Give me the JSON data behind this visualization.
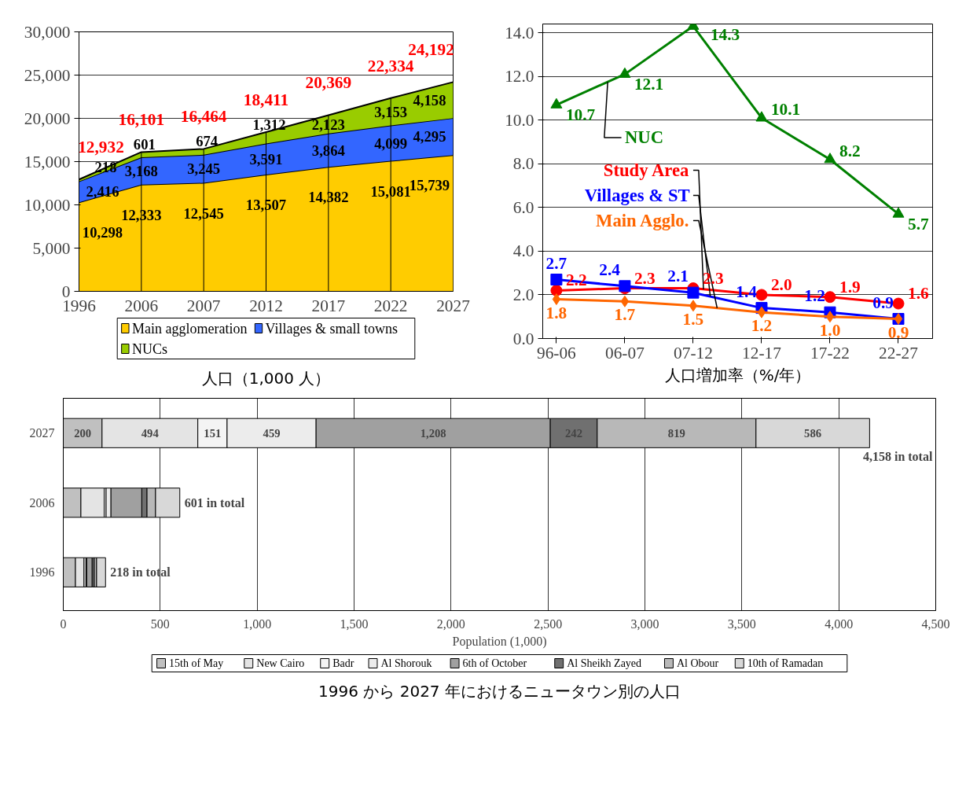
{
  "chart_data": [
    {
      "type": "area",
      "stacked": true,
      "title": "人口（1,000 人）",
      "categories": [
        "1996",
        "2006",
        "2007",
        "2012",
        "2017",
        "2022",
        "2027"
      ],
      "series": [
        {
          "name": "Main agglomeration",
          "color": "#ffcc00",
          "values": [
            10298,
            12333,
            12545,
            13507,
            14382,
            15081,
            15739
          ],
          "value_labels": [
            "10,298",
            "12,333",
            "12,545",
            "13,507",
            "14,382",
            "15,081",
            "15,739"
          ]
        },
        {
          "name": "Villages & small towns",
          "color": "#3366ff",
          "values": [
            2416,
            3168,
            3245,
            3591,
            3864,
            4099,
            4295
          ],
          "value_labels": [
            "2,416",
            "3,168",
            "3,245",
            "3,591",
            "3,864",
            "4,099",
            "4,295"
          ]
        },
        {
          "name": "NUCs",
          "color": "#99cc00",
          "values": [
            218,
            601,
            674,
            1312,
            2123,
            3153,
            4158
          ],
          "value_labels": [
            "218",
            "601",
            "674",
            "1,312",
            "2,123",
            "3,153",
            "4,158"
          ]
        }
      ],
      "totals": [
        "12,932",
        "16,101",
        "16,464",
        "18,411",
        "20,369",
        "22,334",
        "24,192"
      ],
      "ylim": [
        0,
        30000
      ],
      "yticks": [
        0,
        {
          "value": 5000,
          "label": "5,000"
        },
        {
          "value": 10000,
          "label": "10,000"
        },
        {
          "value": 15000,
          "label": "15,000"
        },
        {
          "value": 20000,
          "label": "20,000"
        },
        {
          "value": 25000,
          "label": "25,000"
        },
        {
          "value": 30000,
          "label": "30,000"
        }
      ],
      "grid": "y",
      "legend": "bottom"
    },
    {
      "type": "line",
      "title": "人口増加率（%/年）",
      "categories": [
        "96-06",
        "06-07",
        "07-12",
        "12-17",
        "17-22",
        "22-27"
      ],
      "series": [
        {
          "name": "NUC",
          "color": "#008000",
          "marker": "triangle",
          "values": [
            10.7,
            12.1,
            14.3,
            10.1,
            8.2,
            5.7
          ],
          "value_labels": [
            "10.7",
            "12.1",
            "14.3",
            "10.1",
            "8.2",
            "5.7"
          ]
        },
        {
          "name": "Study Area",
          "color": "#ff0000",
          "marker": "circle",
          "values": [
            2.2,
            2.3,
            2.3,
            2.0,
            1.9,
            1.6
          ],
          "value_labels": [
            "2.2",
            "2.3",
            "2.3",
            "2.0",
            "1.9",
            "1.6"
          ]
        },
        {
          "name": "Villages & ST",
          "color": "#0000ff",
          "marker": "square",
          "values": [
            2.7,
            2.4,
            2.1,
            1.4,
            1.2,
            0.9
          ],
          "value_labels": [
            "2.7",
            "2.4",
            "2.1",
            "1.4",
            "1.2",
            "0.9"
          ]
        },
        {
          "name": "Main Agglo.",
          "color": "#ff6600",
          "marker": "diamond",
          "values": [
            1.8,
            1.7,
            1.5,
            1.2,
            1.0,
            0.9
          ],
          "value_labels": [
            "1.8",
            "1.7",
            "1.5",
            "1.2",
            "1.0",
            "0.9"
          ]
        }
      ],
      "ylim": [
        0,
        14.4
      ],
      "yticks": [
        {
          "value": 0,
          "label": "0.0"
        },
        {
          "value": 2,
          "label": "2.0"
        },
        {
          "value": 4,
          "label": "4.0"
        },
        {
          "value": 6,
          "label": "6.0"
        },
        {
          "value": 8,
          "label": "8.0"
        },
        {
          "value": 10,
          "label": "10.0"
        },
        {
          "value": 12,
          "label": "12.0"
        },
        {
          "value": 14,
          "label": "14.0"
        }
      ],
      "grid": "y",
      "legend": false
    },
    {
      "type": "bar",
      "stacked": true,
      "orientation": "horizontal",
      "title": "1996 から 2027 年におけるニュータウン別の人口",
      "xlabel": "Population (1,000)",
      "categories": [
        "2027",
        "2006",
        "1996"
      ],
      "series": [
        {
          "name": "15th of May",
          "color": "#c0c0c0",
          "values": [
            200,
            91,
            63
          ],
          "value_labels": [
            "200",
            null,
            null
          ]
        },
        {
          "name": "New Cairo",
          "color": "#e4e4e4",
          "values": [
            494,
            120,
            44
          ],
          "value_labels": [
            "494",
            null,
            null
          ]
        },
        {
          "name": "Badr",
          "color": "#f4f4f4",
          "values": [
            151,
            10,
            10
          ],
          "value_labels": [
            "151",
            null,
            null
          ]
        },
        {
          "name": "Al Shorouk",
          "color": "#ececec",
          "values": [
            459,
            25,
            4
          ],
          "value_labels": [
            "459",
            null,
            null
          ]
        },
        {
          "name": "6th of October",
          "color": "#a0a0a0",
          "values": [
            1208,
            159,
            28
          ],
          "value_labels": [
            "1,208",
            null,
            null
          ]
        },
        {
          "name": "Al Sheikh Zayed",
          "color": "#707070",
          "values": [
            242,
            27,
            11
          ],
          "value_labels": [
            "242",
            null,
            null
          ]
        },
        {
          "name": "Al Obour",
          "color": "#b8b8b8",
          "values": [
            819,
            44,
            12
          ],
          "value_labels": [
            "819",
            null,
            null
          ]
        },
        {
          "name": "10th of Ramadan",
          "color": "#d8d8d8",
          "values": [
            586,
            125,
            46
          ],
          "value_labels": [
            "586",
            null,
            null
          ]
        }
      ],
      "totals": [
        "4,158 in total",
        "601 in total",
        "218 in total"
      ],
      "xlim": [
        0,
        4500
      ],
      "xticks": [
        0,
        500,
        {
          "value": 1000,
          "label": "1,000"
        },
        {
          "value": 1500,
          "label": "1,500"
        },
        {
          "value": 2000,
          "label": "2,000"
        },
        {
          "value": 2500,
          "label": "2,500"
        },
        {
          "value": 3000,
          "label": "3,000"
        },
        {
          "value": 3500,
          "label": "3,500"
        },
        {
          "value": 4000,
          "label": "4,000"
        },
        {
          "value": 4500,
          "label": "4,500"
        }
      ],
      "grid": "x",
      "legend": "bottom"
    }
  ]
}
